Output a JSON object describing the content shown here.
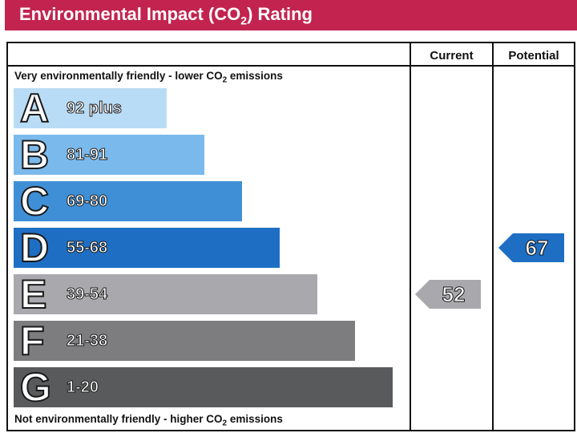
{
  "title": {
    "prefix": "Environmental Impact (CO",
    "sub": "2",
    "suffix": ") Rating",
    "color": "#c2244f"
  },
  "columns": {
    "current": "Current",
    "potential": "Potential"
  },
  "captions": {
    "top_prefix": "Very environmentally friendly - lower CO",
    "top_sub": "2",
    "top_suffix": " emissions",
    "bottom_prefix": "Not environmentally friendly - higher CO",
    "bottom_sub": "2",
    "bottom_suffix": " emissions"
  },
  "bands": [
    {
      "letter": "A",
      "range": "92 plus",
      "color": "#b9dcf6"
    },
    {
      "letter": "B",
      "range": "81-91",
      "color": "#7ab9ec"
    },
    {
      "letter": "C",
      "range": "69-80",
      "color": "#3f8fd6"
    },
    {
      "letter": "D",
      "range": "55-68",
      "color": "#1e6fc4"
    },
    {
      "letter": "E",
      "range": "39-54",
      "color": "#a9a9ad"
    },
    {
      "letter": "F",
      "range": "21-38",
      "color": "#7d7d80"
    },
    {
      "letter": "G",
      "range": "1-20",
      "color": "#595a5c"
    }
  ],
  "current": {
    "value": "52",
    "band": "E",
    "color": "#a9a9ad"
  },
  "potential": {
    "value": "67",
    "band": "D",
    "color": "#1e6fc4"
  }
}
